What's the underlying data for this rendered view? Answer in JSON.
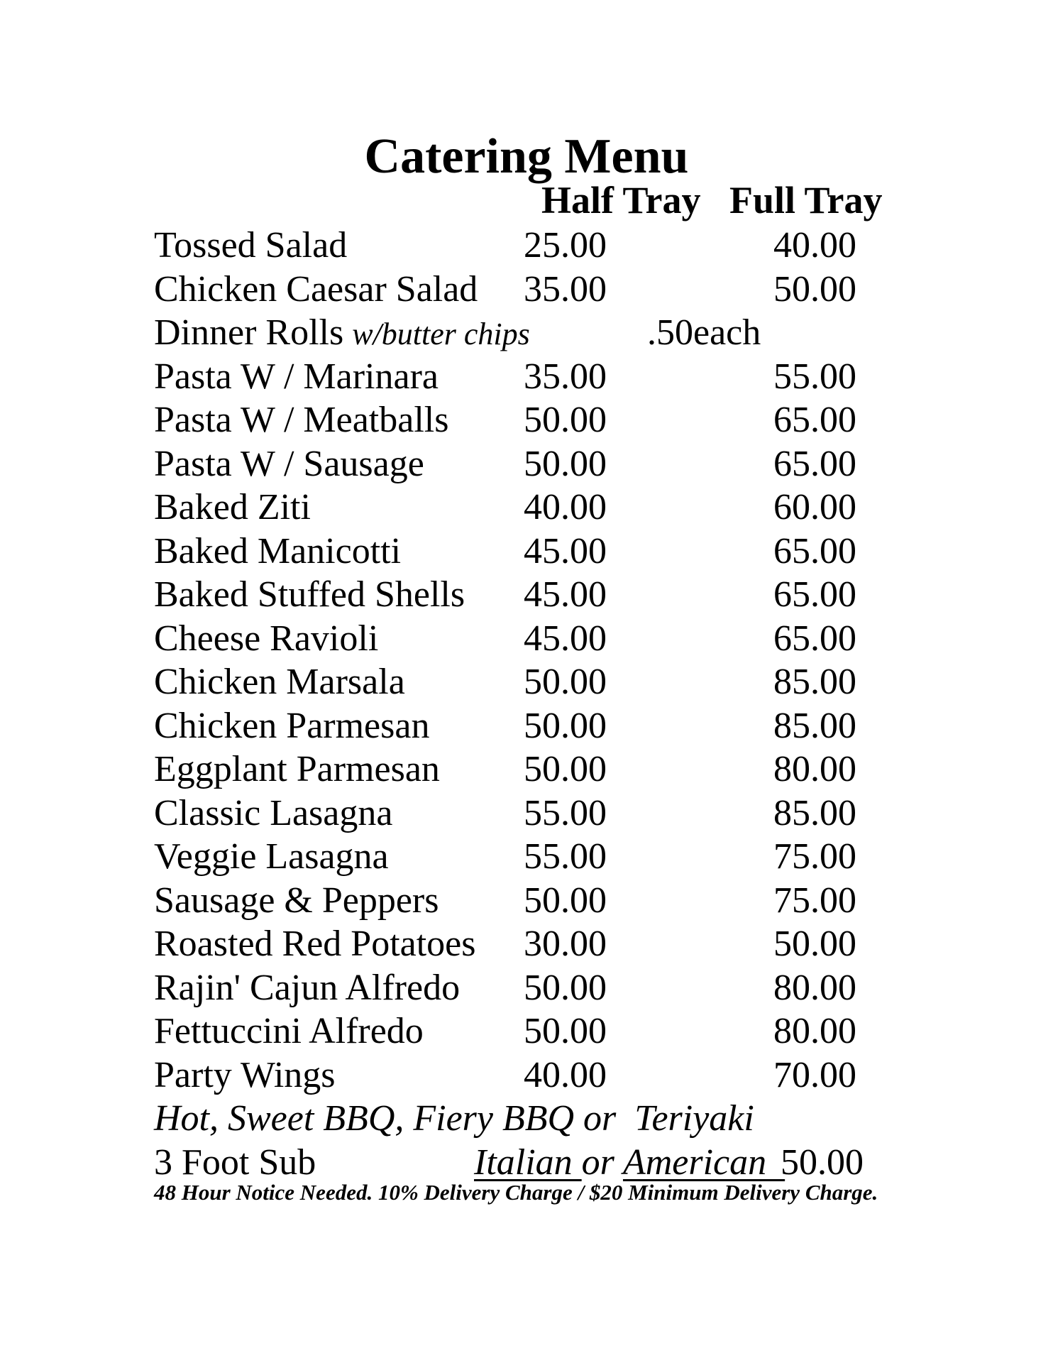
{
  "menu": {
    "title": "Catering Menu",
    "columns": {
      "half": "Half Tray",
      "full": "Full Tray"
    },
    "items": [
      {
        "name": "Tossed Salad",
        "half": "25.00",
        "full": "40.00"
      },
      {
        "name": "Chicken Caesar Salad",
        "half": "35.00",
        "full": "50.00"
      },
      {
        "name": "Dinner Rolls",
        "suffix": "w/butter chips",
        "note": ".50each"
      },
      {
        "name": "Pasta W / Marinara",
        "half": "35.00",
        "full": "55.00"
      },
      {
        "name": "Pasta W / Meatballs",
        "half": "50.00",
        "full": "65.00"
      },
      {
        "name": "Pasta W / Sausage",
        "half": "50.00",
        "full": "65.00"
      },
      {
        "name": "Baked Ziti",
        "half": "40.00",
        "full": "60.00"
      },
      {
        "name": "Baked Manicotti",
        "half": "45.00",
        "full": "65.00"
      },
      {
        "name": "Baked Stuffed Shells",
        "half": "45.00",
        "full": "65.00"
      },
      {
        "name": "Cheese Ravioli",
        "half": "45.00",
        "full": "65.00"
      },
      {
        "name": "Chicken Marsala",
        "half": "50.00",
        "full": "85.00"
      },
      {
        "name": "Chicken Parmesan",
        "half": "50.00",
        "full": "85.00"
      },
      {
        "name": "Eggplant Parmesan",
        "half": "50.00",
        "full": "80.00"
      },
      {
        "name": "Classic Lasagna",
        "half": "55.00",
        "full": "85.00"
      },
      {
        "name": "Veggie Lasagna",
        "half": "55.00",
        "full": "75.00"
      },
      {
        "name": "Sausage & Peppers",
        "half": "50.00",
        "full": "75.00"
      },
      {
        "name": "Roasted Red Potatoes",
        "half": "30.00",
        "full": "50.00"
      },
      {
        "name": "Rajin' Cajun Alfredo",
        "half": "50.00",
        "full": "80.00"
      },
      {
        "name": "Fettuccini Alfredo",
        "half": "50.00",
        "full": "80.00"
      },
      {
        "name": "Party Wings",
        "half": "40.00",
        "full": "70.00"
      }
    ],
    "wing_flavors": "Hot, Sweet BBQ, Fiery BBQ or  Teriyaki",
    "sub": {
      "name": "3 Foot Sub",
      "option_1": "Italian ",
      "connector": "or ",
      "option_2": "American  ",
      "price": "50.00"
    },
    "footer": "48 Hour Notice Needed. 10% Delivery Charge / $20 Minimum Delivery Charge.",
    "text_color": "#000000",
    "background_color": "#ffffff"
  }
}
